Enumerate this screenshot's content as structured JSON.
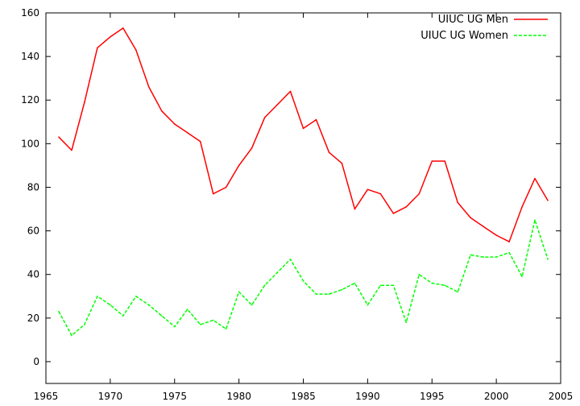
{
  "chart_data": {
    "type": "line",
    "title": "",
    "xlabel": "",
    "ylabel": "",
    "xlim": [
      1965,
      2005
    ],
    "ylim": [
      -10,
      160
    ],
    "x_ticks": [
      "1965",
      "1970",
      "1975",
      "1980",
      "1985",
      "1990",
      "1995",
      "2000",
      "2005"
    ],
    "y_ticks": [
      "0",
      "20",
      "40",
      "60",
      "80",
      "100",
      "120",
      "140",
      "160"
    ],
    "grid": false,
    "legend_position": "top-right",
    "x": [
      1966,
      1967,
      1968,
      1969,
      1970,
      1971,
      1972,
      1973,
      1974,
      1975,
      1976,
      1977,
      1978,
      1979,
      1980,
      1981,
      1982,
      1983,
      1984,
      1985,
      1986,
      1987,
      1988,
      1989,
      1990,
      1991,
      1992,
      1993,
      1994,
      1995,
      1996,
      1997,
      1998,
      1999,
      2000,
      2001,
      2002,
      2003,
      2004
    ],
    "series": [
      {
        "name": "UIUC UG Men",
        "color": "#ff0000",
        "dash": "solid",
        "values": [
          103,
          97,
          119,
          144,
          149,
          153,
          143,
          126,
          115,
          109,
          105,
          101,
          77,
          80,
          90,
          98,
          112,
          118,
          124,
          107,
          111,
          96,
          91,
          70,
          79,
          77,
          68,
          71,
          77,
          92,
          92,
          73,
          66,
          62,
          58,
          55,
          71,
          84,
          74
        ]
      },
      {
        "name": "UIUC UG Women",
        "color": "#00ff00",
        "dash": "dashed",
        "values": [
          23,
          12,
          17,
          30,
          26,
          21,
          30,
          26,
          21,
          16,
          24,
          17,
          19,
          15,
          32,
          26,
          35,
          41,
          47,
          37,
          31,
          31,
          33,
          36,
          26,
          35,
          35,
          18,
          40,
          36,
          35,
          32,
          49,
          48,
          48,
          50,
          39,
          65,
          47
        ]
      }
    ]
  }
}
